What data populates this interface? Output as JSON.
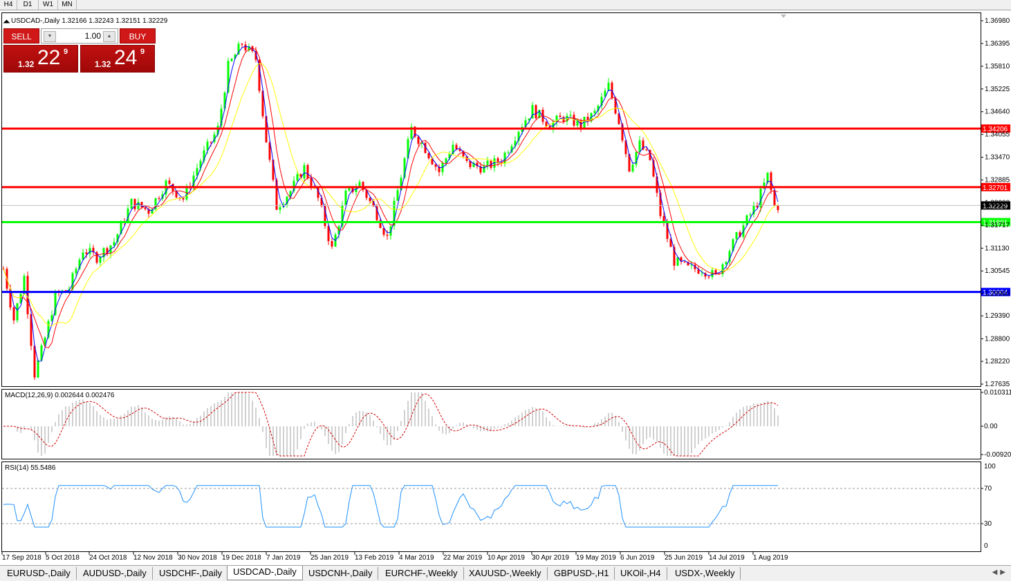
{
  "timeframes": [
    "H4",
    "D1",
    "W1",
    "MN"
  ],
  "chart": {
    "title": "USDCAD-,Daily",
    "ohlc": "1.32166 1.32243 1.32151 1.32229",
    "price_scale": [
      "1.36980",
      "1.36395",
      "1.35810",
      "1.35225",
      "1.34640",
      "1.34055",
      "1.33470",
      "1.32885",
      "1.32300",
      "1.31717",
      "1.31130",
      "1.30545",
      "1.29960",
      "1.29390",
      "1.28800",
      "1.28220",
      "1.27635"
    ],
    "current_price": "1.32229",
    "levels": [
      {
        "label": "1.34206",
        "value": 1.34206,
        "color": "#ff0000"
      },
      {
        "label": "1.32701",
        "value": 1.32701,
        "color": "#ff0000"
      },
      {
        "label": "1.31801",
        "value": 1.31801,
        "color": "#00ff00"
      },
      {
        "label": "1.30004",
        "value": 1.30004,
        "color": "#0000ff"
      }
    ],
    "dates": [
      "17 Sep 2018",
      "5 Oct 2018",
      "24 Oct 2018",
      "12 Nov 2018",
      "30 Nov 2018",
      "19 Dec 2018",
      "7 Jan 2019",
      "25 Jan 2019",
      "13 Feb 2019",
      "4 Mar 2019",
      "22 Mar 2019",
      "10 Apr 2019",
      "30 Apr 2019",
      "19 May 2019",
      "6 Jun 2019",
      "25 Jun 2019",
      "14 Jul 2019",
      "1 Aug 2019"
    ],
    "colors": {
      "bull": "#00ff00",
      "bear": "#ff0000",
      "ma_fast": "#0000ff",
      "ma_mid": "#ff0000",
      "ma_slow": "#ffff00"
    }
  },
  "macd": {
    "label": "MACD(12,26,9) 0.002644 0.002476",
    "scale": [
      "0.010311",
      "0.00",
      "-0.009203"
    ]
  },
  "rsi": {
    "label": "RSI(14) 55.5486",
    "scale": [
      "100",
      "70",
      "30",
      "0"
    ]
  },
  "trade": {
    "sell_label": "SELL",
    "buy_label": "BUY",
    "lot": "1.00",
    "sell_prefix": "1.32",
    "sell_big": "22",
    "sell_pip": "9",
    "buy_prefix": "1.32",
    "buy_big": "24",
    "buy_pip": "9"
  },
  "tabs": [
    "EURUSD-,Daily",
    "AUDUSD-,Daily",
    "USDCHF-,Daily",
    "USDCAD-,Daily",
    "USDCNH-,Daily",
    "EURCHF-,Weekly",
    "XAUUSD-,Weekly",
    "GBPUSD-,H1",
    "UKOil-,H4",
    "USDX-,Weekly"
  ],
  "active_tab": 3
}
